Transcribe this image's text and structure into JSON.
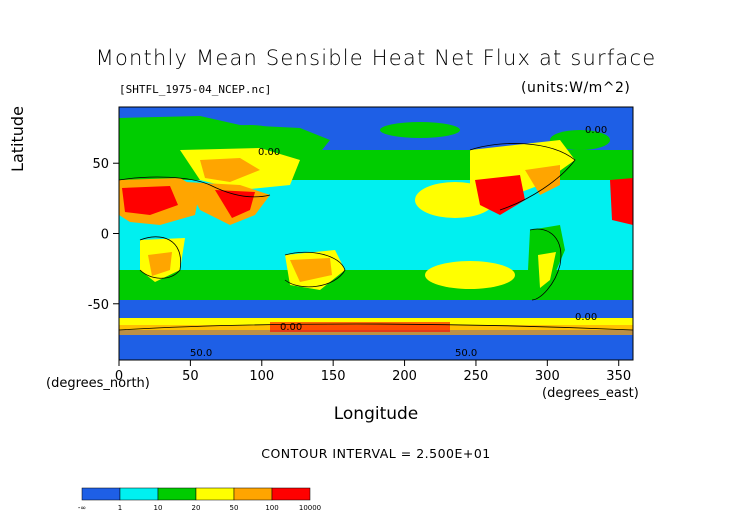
{
  "title": "Monthly Mean Sensible Heat Net Flux at surface",
  "filename": "[SHTFL_1975-04_NCEP.nc]",
  "units": "(units:W/m^2)",
  "axes": {
    "xlabel": "Longitude",
    "ylabel": "Latitude",
    "x_unit_note": "(degrees_east)",
    "y_unit_note": "(degrees_north)",
    "x_ticks": [
      "0",
      "50",
      "100",
      "150",
      "200",
      "250",
      "300",
      "350"
    ],
    "y_ticks": [
      "50",
      "0",
      "-50"
    ]
  },
  "contour_interval": "CONTOUR INTERVAL = 2.500E+01",
  "contour_labels": [
    "0.00",
    "0.00",
    "0.00",
    "50.0",
    "50.0",
    "0.00"
  ],
  "legend": {
    "labels": [
      "-∞",
      "1",
      "10",
      "20",
      "50",
      "100",
      "10000"
    ],
    "colors": [
      "#1e5fe6",
      "#00f0f0",
      "#00cc00",
      "#ffff00",
      "#ffa500",
      "#ff0000"
    ]
  },
  "chart_data": {
    "type": "heatmap",
    "title": "Monthly Mean Sensible Heat Net Flux at surface",
    "xlabel": "Longitude",
    "ylabel": "Latitude",
    "xlim": [
      0,
      360
    ],
    "ylim": [
      -90,
      90
    ],
    "x_ticks": [
      0,
      50,
      100,
      150,
      200,
      250,
      300,
      350
    ],
    "y_ticks": [
      -50,
      0,
      50
    ],
    "levels": [
      "-inf",
      1,
      10,
      20,
      50,
      100,
      10000
    ],
    "level_colors": [
      "#1e5fe6",
      "#00f0f0",
      "#00cc00",
      "#ffff00",
      "#ffa500",
      "#ff0000"
    ],
    "units": "W/m^2"
  }
}
